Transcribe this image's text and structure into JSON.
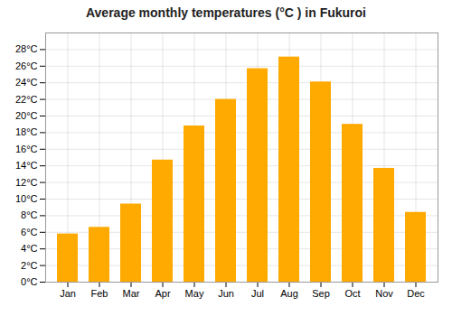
{
  "chart_data": {
    "type": "bar",
    "title": "Average monthly temperatures (°C ) in Fukuroi",
    "categories": [
      "Jan",
      "Feb",
      "Mar",
      "Apr",
      "May",
      "Jun",
      "Jul",
      "Aug",
      "Sep",
      "Oct",
      "Nov",
      "Dec"
    ],
    "values": [
      5.8,
      6.6,
      9.4,
      14.7,
      18.8,
      22.0,
      25.7,
      27.1,
      24.1,
      19.0,
      13.7,
      8.4
    ],
    "color": "#FFAA00",
    "ylim": [
      0,
      30
    ],
    "yticks": [
      {
        "value": 0,
        "label": "0°C"
      },
      {
        "value": 2,
        "label": "2°C"
      },
      {
        "value": 4,
        "label": "4°C"
      },
      {
        "value": 6,
        "label": "6°C"
      },
      {
        "value": 8,
        "label": "8°C"
      },
      {
        "value": 10,
        "label": "10°C"
      },
      {
        "value": 12,
        "label": "12°C"
      },
      {
        "value": 14,
        "label": "14°C"
      },
      {
        "value": 16,
        "label": "16°C"
      },
      {
        "value": 18,
        "label": "18°C"
      },
      {
        "value": 20,
        "label": "20°C"
      },
      {
        "value": 22,
        "label": "22°C"
      },
      {
        "value": 24,
        "label": "24°C"
      },
      {
        "value": 26,
        "label": "26°C"
      },
      {
        "value": 28,
        "label": "28°C"
      }
    ],
    "grid": true
  }
}
